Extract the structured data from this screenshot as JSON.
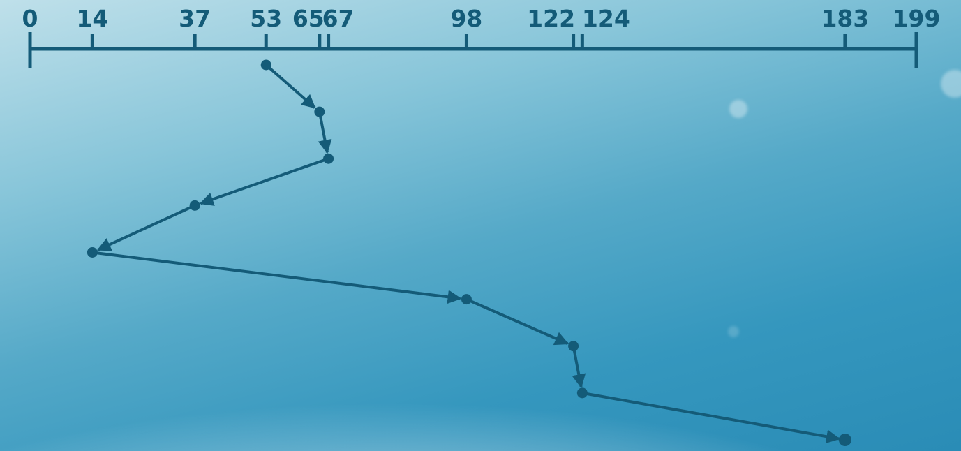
{
  "diagram": {
    "type": "disk-scheduling-seek-path",
    "axis": {
      "min": 0,
      "max": 199
    },
    "tick_labels": [
      "0",
      "14",
      "37",
      "53",
      "65",
      "67",
      "98",
      "122",
      "124",
      "183",
      "199"
    ],
    "seek_sequence": [
      53,
      65,
      67,
      37,
      14,
      98,
      122,
      124,
      183
    ],
    "colors": {
      "line": "#145b78",
      "background_top": "#2a8cb6",
      "background_bottom": "#ffffff"
    }
  }
}
